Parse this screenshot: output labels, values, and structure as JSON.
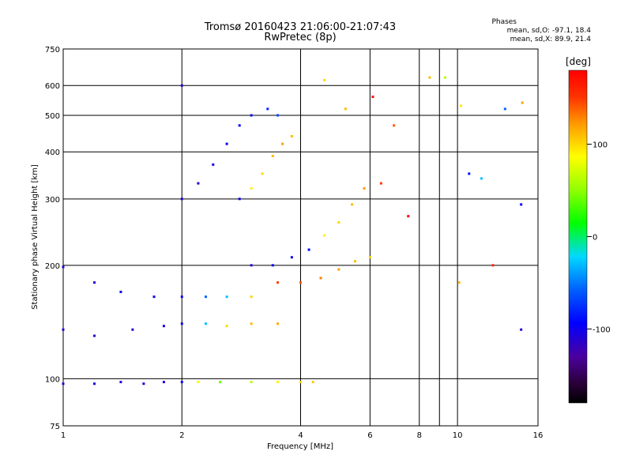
{
  "header": {
    "title_line1": "Tromsø 20160423 21:06:00-21:07:43",
    "title_line2": "RwPretec (8p)",
    "stats_title": "Phases",
    "stats_o": "mean, sd,O: -97.1, 18.4",
    "stats_x": "mean, sd,X:  89.9, 21.4"
  },
  "colorbar": {
    "title": "[deg]",
    "ticks": [
      {
        "label": "100",
        "value": 100
      },
      {
        "label": "0",
        "value": 0
      },
      {
        "label": "-100",
        "value": -100
      }
    ],
    "range": [
      -180,
      180
    ]
  },
  "chart_data": {
    "type": "scatter",
    "title": "Tromsø 20160423 21:06:00-21:07:43",
    "subtitle": "RwPretec (8p)",
    "xlabel": "Frequency [MHz]",
    "ylabel": "Stationary phase Virtual Height [km]",
    "x_scale": "log",
    "y_scale": "log",
    "xlim": [
      1,
      16
    ],
    "ylim": [
      75,
      750
    ],
    "x_ticks": [
      1,
      2,
      4,
      6,
      8,
      10,
      16
    ],
    "x_minor_ticks": [
      9
    ],
    "y_ticks": [
      75,
      100,
      200,
      300,
      400,
      500,
      600,
      750
    ],
    "grid": true,
    "color_variable": "phase [deg]",
    "color_range": [
      -180,
      180
    ],
    "traces": [
      {
        "name": "",
        "points": [
          [
            1.0,
            97
          ],
          [
            1.2,
            97
          ],
          [
            1.4,
            98
          ],
          [
            1.6,
            97
          ],
          [
            1.8,
            98
          ],
          [
            2.0,
            98
          ],
          [
            2.2,
            98
          ],
          [
            2.5,
            98
          ],
          [
            3.0,
            98
          ],
          [
            3.5,
            98
          ],
          [
            4.0,
            98
          ],
          [
            4.3,
            98
          ]
        ],
        "phase": [
          -110,
          -105,
          -110,
          -105,
          -108,
          -100,
          80,
          40,
          60,
          90,
          100,
          105
        ]
      },
      {
        "name": "",
        "points": [
          [
            1.0,
            135
          ],
          [
            1.2,
            130
          ],
          [
            1.5,
            135
          ],
          [
            1.8,
            138
          ],
          [
            2.0,
            140
          ],
          [
            2.3,
            140
          ],
          [
            2.6,
            138
          ],
          [
            3.0,
            140
          ],
          [
            3.5,
            140
          ]
        ],
        "phase": [
          -110,
          -112,
          -110,
          -105,
          -100,
          -30,
          100,
          110,
          115
        ]
      },
      {
        "name": "",
        "points": [
          [
            1.0,
            198
          ],
          [
            1.2,
            180
          ],
          [
            1.4,
            170
          ],
          [
            1.7,
            165
          ],
          [
            2.0,
            165
          ],
          [
            2.3,
            165
          ],
          [
            2.6,
            165
          ],
          [
            3.0,
            165
          ]
        ],
        "phase": [
          -110,
          -108,
          -105,
          -100,
          -95,
          -60,
          -30,
          100
        ]
      },
      {
        "name": "",
        "points": [
          [
            2.0,
            300
          ],
          [
            2.2,
            330
          ],
          [
            2.4,
            370
          ],
          [
            2.6,
            420
          ],
          [
            2.8,
            470
          ],
          [
            3.0,
            500
          ],
          [
            3.3,
            520
          ],
          [
            3.5,
            500
          ]
        ],
        "phase": [
          -110,
          -110,
          -105,
          -100,
          -95,
          -90,
          -80,
          -70
        ]
      },
      {
        "name": "",
        "points": [
          [
            2.8,
            300
          ],
          [
            3.0,
            320
          ],
          [
            3.2,
            350
          ],
          [
            3.4,
            390
          ],
          [
            3.6,
            420
          ],
          [
            3.8,
            440
          ]
        ],
        "phase": [
          -100,
          90,
          100,
          110,
          120,
          110
        ]
      },
      {
        "name": "",
        "points": [
          [
            3.0,
            200
          ],
          [
            3.4,
            200
          ],
          [
            3.8,
            210
          ],
          [
            4.2,
            220
          ],
          [
            4.6,
            240
          ],
          [
            5.0,
            260
          ],
          [
            5.4,
            290
          ],
          [
            5.8,
            320
          ]
        ],
        "phase": [
          -110,
          -105,
          -100,
          -95,
          90,
          100,
          110,
          120
        ]
      },
      {
        "name": "",
        "points": [
          [
            3.5,
            180
          ],
          [
            4.0,
            180
          ],
          [
            4.5,
            185
          ],
          [
            5.0,
            195
          ],
          [
            5.5,
            205
          ],
          [
            6.0,
            210
          ]
        ],
        "phase": [
          150,
          140,
          130,
          120,
          110,
          100
        ]
      }
    ],
    "scattered": [
      {
        "x": 2.0,
        "y": 600,
        "phase": -110
      },
      {
        "x": 4.6,
        "y": 620,
        "phase": 100
      },
      {
        "x": 5.2,
        "y": 520,
        "phase": 110
      },
      {
        "x": 6.1,
        "y": 560,
        "phase": 170
      },
      {
        "x": 6.9,
        "y": 470,
        "phase": 140
      },
      {
        "x": 8.5,
        "y": 630,
        "phase": 110
      },
      {
        "x": 9.3,
        "y": 630,
        "phase": 60
      },
      {
        "x": 10.2,
        "y": 530,
        "phase": 95
      },
      {
        "x": 10.7,
        "y": 350,
        "phase": -90
      },
      {
        "x": 11.5,
        "y": 340,
        "phase": -30
      },
      {
        "x": 13.2,
        "y": 520,
        "phase": -60
      },
      {
        "x": 14.6,
        "y": 540,
        "phase": 120
      },
      {
        "x": 14.5,
        "y": 290,
        "phase": -95
      },
      {
        "x": 14.5,
        "y": 135,
        "phase": -110
      },
      {
        "x": 12.3,
        "y": 200,
        "phase": 160
      },
      {
        "x": 10.1,
        "y": 180,
        "phase": 110
      },
      {
        "x": 7.5,
        "y": 270,
        "phase": 180
      },
      {
        "x": 6.4,
        "y": 330,
        "phase": 150
      }
    ]
  }
}
